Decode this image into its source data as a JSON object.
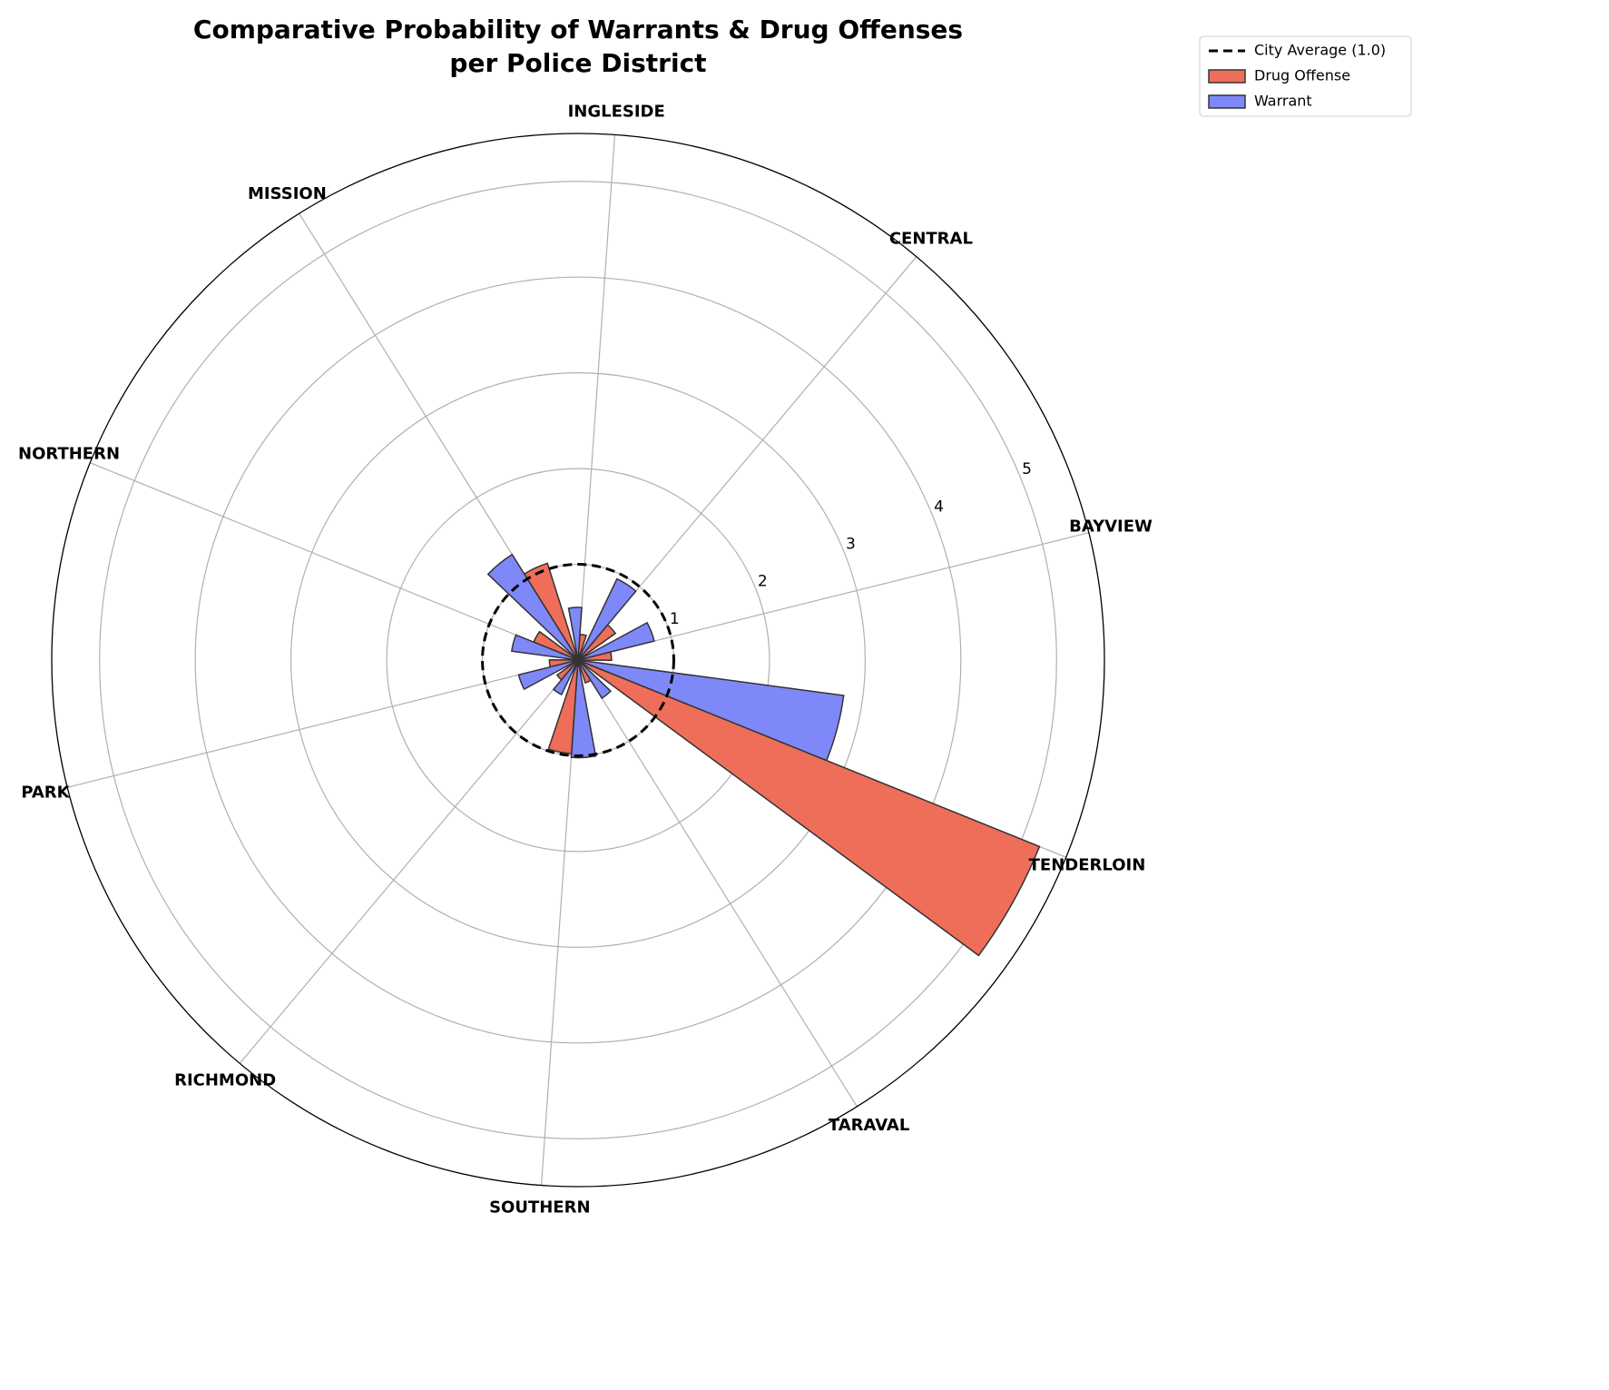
{
  "chart_data": {
    "type": "polar_bar",
    "title": "Comparative Probability of Warrants & Drug Offenses\nper Police District",
    "categories": [
      "BAYVIEW",
      "CENTRAL",
      "INGLESIDE",
      "MISSION",
      "NORTHERN",
      "PARK",
      "RICHMOND",
      "SOUTHERN",
      "TARAVAL",
      "TENDERLOIN"
    ],
    "series": [
      {
        "name": "Drug Offense",
        "color": "#ee6e5a",
        "values": [
          0.35,
          0.48,
          0.27,
          1.06,
          0.5,
          0.3,
          0.27,
          0.98,
          0.25,
          5.2
        ]
      },
      {
        "name": "Warrant",
        "color": "#7f88f8",
        "values": [
          0.82,
          0.94,
          0.55,
          1.3,
          0.7,
          0.64,
          0.4,
          1.02,
          0.47,
          2.8
        ]
      }
    ],
    "reference": {
      "name": "City Average (1.0)",
      "value": 1.0
    },
    "rlim": [
      0,
      5.5
    ],
    "rticks": [
      1,
      2,
      3,
      4,
      5
    ],
    "grid": true,
    "legend": "upper right"
  }
}
